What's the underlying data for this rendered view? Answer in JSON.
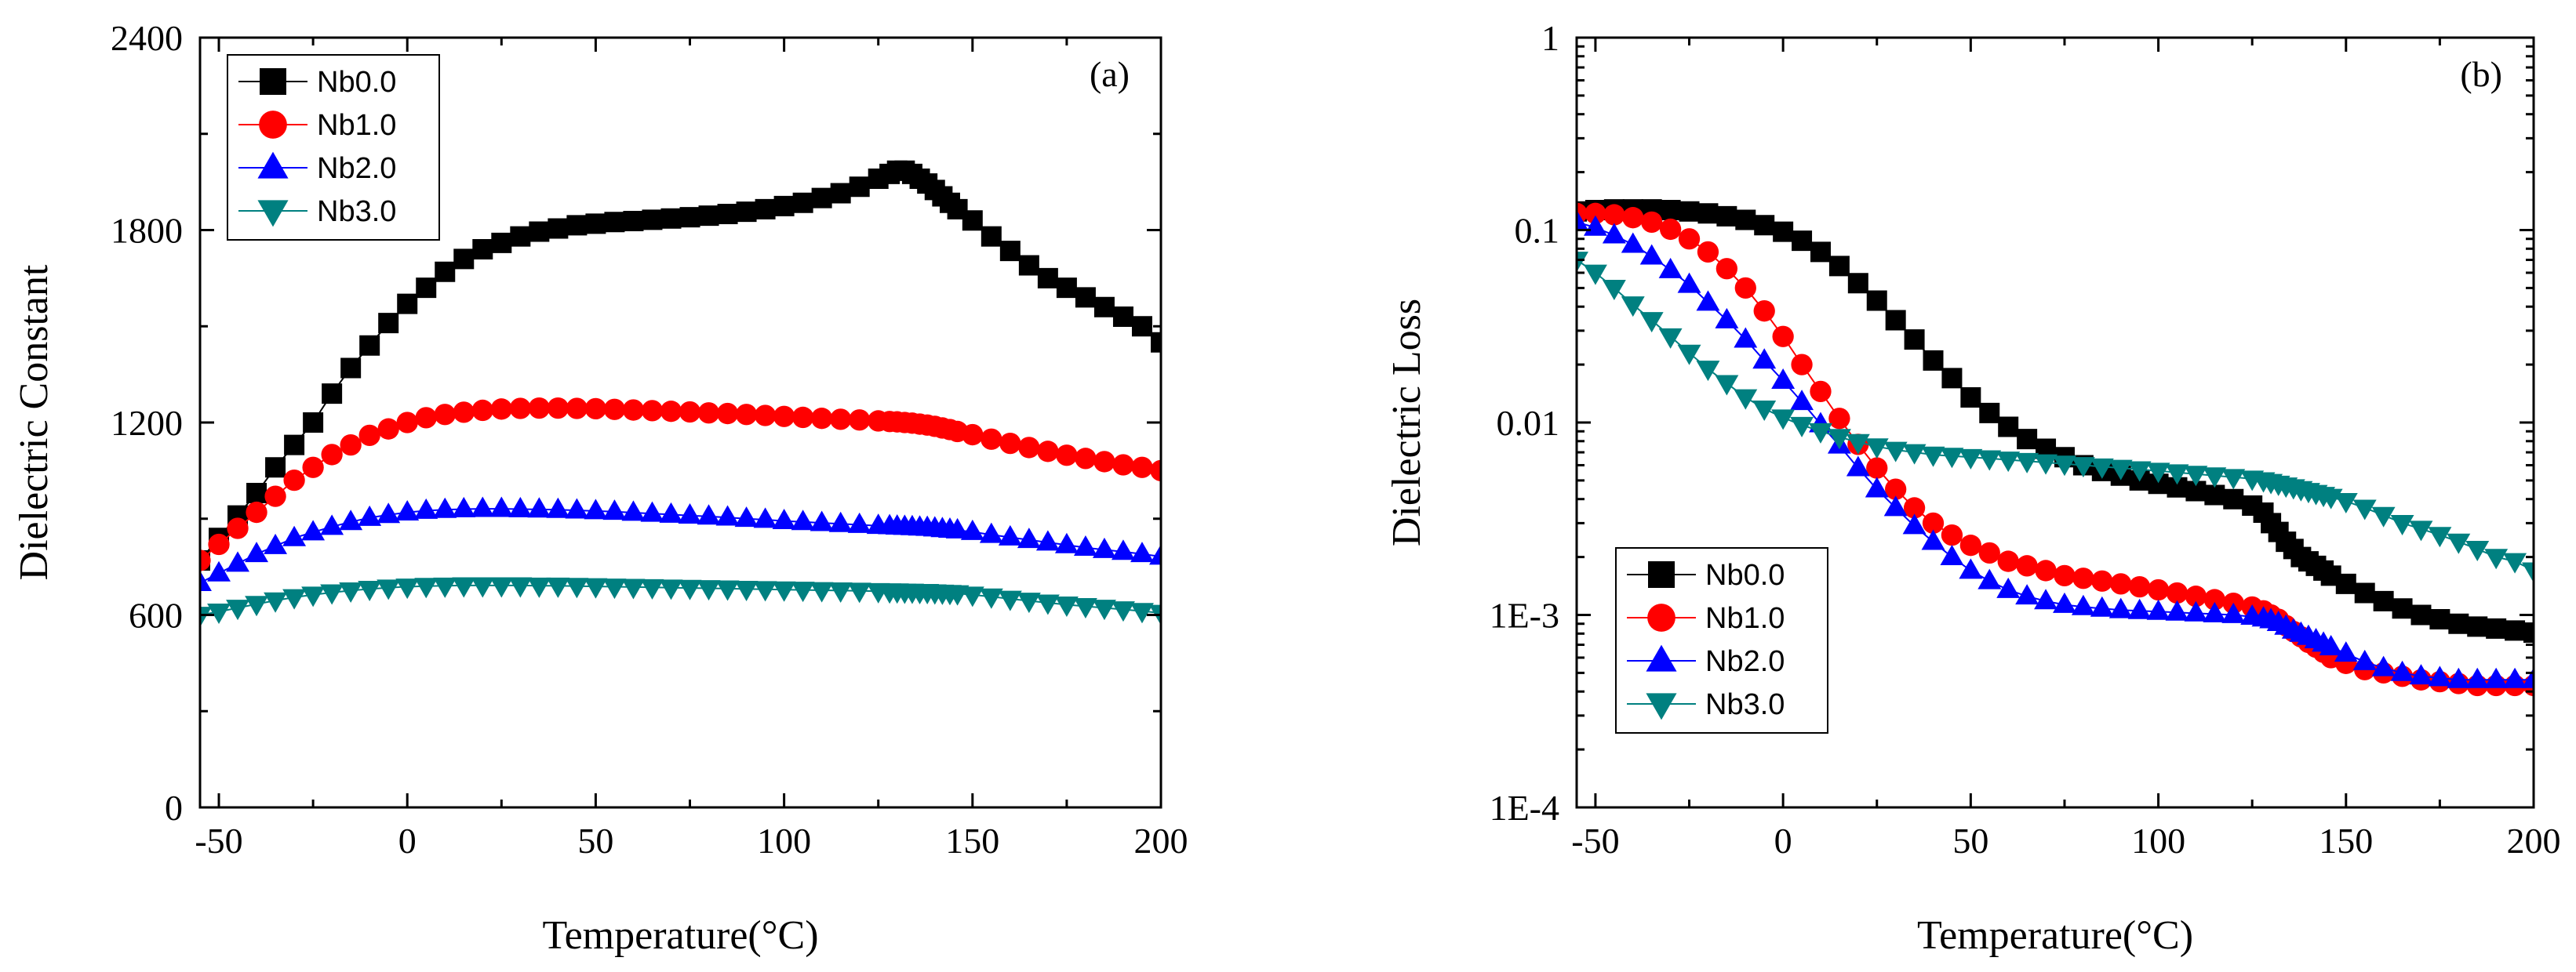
{
  "chart_data": [
    {
      "type": "scatter",
      "panel_label": "(a)",
      "xlabel": "Temperature(°C)",
      "ylabel": "Dielectric Constant",
      "xlim": [
        -55,
        200
      ],
      "ylim": [
        0,
        2400
      ],
      "yscale": "linear",
      "xticks": [
        -50,
        0,
        50,
        100,
        150,
        200
      ],
      "xtick_labels": [
        "-50",
        "0",
        "50",
        "100",
        "150",
        "200"
      ],
      "yticks": [
        0,
        600,
        1200,
        1800,
        2400
      ],
      "ytick_labels": [
        "0",
        "600",
        "1200",
        "1800",
        "2400"
      ],
      "legend_position": "top-left",
      "series": [
        {
          "name": "Nb0.0",
          "color": "#000000",
          "marker": "square",
          "x": [
            -55,
            -50,
            -45,
            -40,
            -35,
            -30,
            -25,
            -20,
            -15,
            -10,
            -5,
            0,
            5,
            10,
            15,
            20,
            25,
            30,
            35,
            40,
            45,
            50,
            55,
            60,
            65,
            70,
            75,
            80,
            85,
            90,
            95,
            100,
            105,
            110,
            115,
            120,
            125,
            128,
            130,
            132,
            134,
            136,
            138,
            140,
            142,
            144,
            146,
            150,
            155,
            160,
            165,
            170,
            175,
            180,
            185,
            190,
            195,
            200
          ],
          "y": [
            770,
            840,
            910,
            980,
            1060,
            1130,
            1200,
            1290,
            1370,
            1440,
            1510,
            1570,
            1620,
            1670,
            1710,
            1740,
            1760,
            1780,
            1795,
            1805,
            1815,
            1820,
            1825,
            1828,
            1832,
            1836,
            1840,
            1845,
            1850,
            1857,
            1865,
            1875,
            1885,
            1900,
            1915,
            1935,
            1960,
            1975,
            1985,
            1985,
            1975,
            1960,
            1945,
            1925,
            1905,
            1885,
            1865,
            1830,
            1780,
            1735,
            1690,
            1650,
            1620,
            1590,
            1560,
            1530,
            1500,
            1450
          ]
        },
        {
          "name": "Nb1.0",
          "color": "#ff0000",
          "marker": "circle",
          "x": [
            -55,
            -50,
            -45,
            -40,
            -35,
            -30,
            -25,
            -20,
            -15,
            -10,
            -5,
            0,
            5,
            10,
            15,
            20,
            25,
            30,
            35,
            40,
            45,
            50,
            55,
            60,
            65,
            70,
            75,
            80,
            85,
            90,
            95,
            100,
            105,
            110,
            115,
            120,
            125,
            128,
            130,
            132,
            134,
            136,
            138,
            140,
            142,
            144,
            146,
            150,
            155,
            160,
            165,
            170,
            175,
            180,
            185,
            190,
            195,
            200
          ],
          "y": [
            770,
            820,
            870,
            920,
            970,
            1020,
            1060,
            1100,
            1130,
            1160,
            1180,
            1200,
            1215,
            1225,
            1232,
            1238,
            1242,
            1244,
            1245,
            1245,
            1244,
            1243,
            1241,
            1239,
            1237,
            1235,
            1233,
            1230,
            1228,
            1225,
            1222,
            1219,
            1216,
            1213,
            1210,
            1208,
            1205,
            1203,
            1202,
            1200,
            1198,
            1195,
            1192,
            1188,
            1183,
            1178,
            1172,
            1162,
            1148,
            1135,
            1122,
            1110,
            1098,
            1088,
            1078,
            1068,
            1060,
            1050
          ]
        },
        {
          "name": "Nb2.0",
          "color": "#0000ff",
          "marker": "triangle-up",
          "x": [
            -55,
            -50,
            -45,
            -40,
            -35,
            -30,
            -25,
            -20,
            -15,
            -10,
            -5,
            0,
            5,
            10,
            15,
            20,
            25,
            30,
            35,
            40,
            45,
            50,
            55,
            60,
            65,
            70,
            75,
            80,
            85,
            90,
            95,
            100,
            105,
            110,
            115,
            120,
            125,
            128,
            130,
            132,
            134,
            136,
            138,
            140,
            142,
            144,
            146,
            150,
            155,
            160,
            165,
            170,
            175,
            180,
            185,
            190,
            195,
            200
          ],
          "y": [
            700,
            730,
            760,
            790,
            815,
            840,
            858,
            875,
            890,
            903,
            912,
            920,
            925,
            928,
            930,
            931,
            931,
            930,
            929,
            928,
            926,
            924,
            922,
            919,
            916,
            913,
            910,
            907,
            904,
            900,
            897,
            893,
            890,
            887,
            884,
            881,
            878,
            877,
            876,
            875,
            874,
            873,
            872,
            870,
            868,
            866,
            864,
            859,
            850,
            842,
            834,
            826,
            818,
            810,
            803,
            797,
            790,
            782
          ]
        },
        {
          "name": "Nb3.0",
          "color": "#008080",
          "marker": "triangle-down",
          "x": [
            -55,
            -50,
            -45,
            -40,
            -35,
            -30,
            -25,
            -20,
            -15,
            -10,
            -5,
            0,
            5,
            10,
            15,
            20,
            25,
            30,
            35,
            40,
            45,
            50,
            55,
            60,
            65,
            70,
            75,
            80,
            85,
            90,
            95,
            100,
            105,
            110,
            115,
            120,
            125,
            128,
            130,
            132,
            134,
            136,
            138,
            140,
            142,
            144,
            146,
            150,
            155,
            160,
            165,
            170,
            175,
            180,
            185,
            190,
            195,
            200
          ],
          "y": [
            600,
            610,
            622,
            634,
            645,
            655,
            663,
            670,
            676,
            681,
            685,
            688,
            690,
            691,
            692,
            692,
            692,
            692,
            691,
            691,
            690,
            689,
            688,
            687,
            686,
            685,
            684,
            683,
            682,
            681,
            680,
            679,
            678,
            677,
            676,
            675,
            674,
            673,
            673,
            672,
            672,
            671,
            671,
            670,
            669,
            668,
            667,
            663,
            657,
            650,
            644,
            638,
            632,
            627,
            622,
            617,
            612,
            606
          ]
        }
      ]
    },
    {
      "type": "scatter",
      "panel_label": "(b)",
      "xlabel": "Temperature(°C)",
      "ylabel": "Dielectric Loss",
      "xlim": [
        -55,
        200
      ],
      "ylim": [
        0.0001,
        1
      ],
      "yscale": "log",
      "xticks": [
        -50,
        0,
        50,
        100,
        150,
        200
      ],
      "xtick_labels": [
        "-50",
        "0",
        "50",
        "100",
        "150",
        "200"
      ],
      "yticks": [
        0.0001,
        0.001,
        0.01,
        0.1,
        1
      ],
      "ytick_labels": [
        "1E-4",
        "1E-3",
        "0.01",
        "0.1",
        "1"
      ],
      "legend_position": "bottom-left",
      "series": [
        {
          "name": "Nb0.0",
          "color": "#000000",
          "marker": "square",
          "x": [
            -55,
            -50,
            -45,
            -40,
            -35,
            -30,
            -25,
            -20,
            -15,
            -10,
            -5,
            0,
            5,
            10,
            15,
            20,
            25,
            30,
            35,
            40,
            45,
            50,
            55,
            60,
            65,
            70,
            75,
            80,
            85,
            90,
            95,
            100,
            105,
            110,
            115,
            120,
            125,
            128,
            130,
            132,
            134,
            136,
            138,
            140,
            142,
            144,
            146,
            150,
            155,
            160,
            165,
            170,
            175,
            180,
            185,
            190,
            195,
            200
          ],
          "y": [
            0.125,
            0.127,
            0.128,
            0.128,
            0.128,
            0.127,
            0.125,
            0.122,
            0.118,
            0.113,
            0.106,
            0.098,
            0.088,
            0.077,
            0.065,
            0.053,
            0.043,
            0.034,
            0.027,
            0.021,
            0.017,
            0.0135,
            0.0112,
            0.0095,
            0.0082,
            0.0073,
            0.0066,
            0.006,
            0.0056,
            0.0053,
            0.005,
            0.0048,
            0.0046,
            0.0044,
            0.0042,
            0.004,
            0.0037,
            0.0034,
            0.003,
            0.0027,
            0.0024,
            0.0022,
            0.002,
            0.0019,
            0.0018,
            0.0017,
            0.0016,
            0.00145,
            0.0013,
            0.00118,
            0.00108,
            0.001,
            0.00095,
            0.0009,
            0.00087,
            0.00085,
            0.00083,
            0.00081
          ]
        },
        {
          "name": "Nb1.0",
          "color": "#ff0000",
          "marker": "circle",
          "x": [
            -55,
            -50,
            -45,
            -40,
            -35,
            -30,
            -25,
            -20,
            -15,
            -10,
            -5,
            0,
            5,
            10,
            15,
            20,
            25,
            30,
            35,
            40,
            45,
            50,
            55,
            60,
            65,
            70,
            75,
            80,
            85,
            90,
            95,
            100,
            105,
            110,
            115,
            120,
            125,
            128,
            130,
            132,
            134,
            136,
            138,
            140,
            142,
            144,
            146,
            150,
            155,
            160,
            165,
            170,
            175,
            180,
            185,
            190,
            195,
            200
          ],
          "y": [
            0.122,
            0.122,
            0.12,
            0.116,
            0.11,
            0.101,
            0.09,
            0.077,
            0.063,
            0.05,
            0.038,
            0.028,
            0.02,
            0.0145,
            0.0105,
            0.0077,
            0.0058,
            0.0045,
            0.0036,
            0.003,
            0.0026,
            0.0023,
            0.0021,
            0.0019,
            0.0018,
            0.0017,
            0.0016,
            0.00155,
            0.0015,
            0.00145,
            0.0014,
            0.00135,
            0.0013,
            0.00125,
            0.0012,
            0.00115,
            0.0011,
            0.00105,
            0.001,
            0.00095,
            0.00088,
            0.00082,
            0.00077,
            0.00072,
            0.00068,
            0.00064,
            0.0006,
            0.00056,
            0.00052,
            0.0005,
            0.00048,
            0.00046,
            0.00045,
            0.00044,
            0.00043,
            0.00043,
            0.00043,
            0.00043
          ]
        },
        {
          "name": "Nb2.0",
          "color": "#0000ff",
          "marker": "triangle-up",
          "x": [
            -55,
            -50,
            -45,
            -40,
            -35,
            -30,
            -25,
            -20,
            -15,
            -10,
            -5,
            0,
            5,
            10,
            15,
            20,
            25,
            30,
            35,
            40,
            45,
            50,
            55,
            60,
            65,
            70,
            75,
            80,
            85,
            90,
            95,
            100,
            105,
            110,
            115,
            120,
            125,
            128,
            130,
            132,
            134,
            136,
            138,
            140,
            142,
            144,
            146,
            150,
            155,
            160,
            165,
            170,
            175,
            180,
            185,
            190,
            195,
            200
          ],
          "y": [
            0.11,
            0.103,
            0.094,
            0.084,
            0.073,
            0.062,
            0.052,
            0.042,
            0.034,
            0.027,
            0.021,
            0.0165,
            0.0128,
            0.0098,
            0.0076,
            0.0058,
            0.0045,
            0.0036,
            0.0029,
            0.0024,
            0.002,
            0.0017,
            0.0015,
            0.00135,
            0.00125,
            0.00118,
            0.00113,
            0.0011,
            0.00108,
            0.00106,
            0.00105,
            0.00104,
            0.00103,
            0.00102,
            0.00101,
            0.001,
            0.00098,
            0.00096,
            0.00094,
            0.00091,
            0.00087,
            0.00083,
            0.0008,
            0.00077,
            0.00074,
            0.00071,
            0.00068,
            0.00063,
            0.00057,
            0.00053,
            0.0005,
            0.00048,
            0.00047,
            0.00046,
            0.00046,
            0.00046,
            0.00046,
            0.00046
          ]
        },
        {
          "name": "Nb3.0",
          "color": "#008080",
          "marker": "triangle-down",
          "x": [
            -55,
            -50,
            -45,
            -40,
            -35,
            -30,
            -25,
            -20,
            -15,
            -10,
            -5,
            0,
            5,
            10,
            15,
            20,
            25,
            30,
            35,
            40,
            45,
            50,
            55,
            60,
            65,
            70,
            75,
            80,
            85,
            90,
            95,
            100,
            105,
            110,
            115,
            120,
            125,
            128,
            130,
            132,
            134,
            136,
            138,
            140,
            142,
            144,
            146,
            150,
            155,
            160,
            165,
            170,
            175,
            180,
            185,
            190,
            195,
            200
          ],
          "y": [
            0.07,
            0.06,
            0.05,
            0.041,
            0.034,
            0.028,
            0.023,
            0.019,
            0.016,
            0.0135,
            0.0118,
            0.0106,
            0.0097,
            0.009,
            0.0084,
            0.0079,
            0.0075,
            0.0072,
            0.007,
            0.0068,
            0.0067,
            0.0066,
            0.0065,
            0.0064,
            0.0063,
            0.0062,
            0.0061,
            0.006,
            0.0059,
            0.0058,
            0.0057,
            0.0056,
            0.0055,
            0.0054,
            0.0053,
            0.0052,
            0.0051,
            0.005,
            0.0049,
            0.0048,
            0.0047,
            0.0046,
            0.0045,
            0.0044,
            0.0043,
            0.0042,
            0.0041,
            0.0039,
            0.0036,
            0.0033,
            0.003,
            0.0028,
            0.0026,
            0.0024,
            0.0022,
            0.002,
            0.0019,
            0.0017
          ]
        }
      ]
    }
  ]
}
